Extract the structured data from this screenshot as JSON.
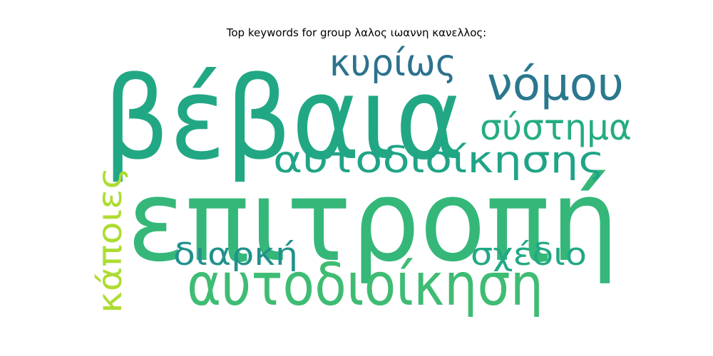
{
  "title": "Top keywords for group λαλος ιωαννη κανελλος:",
  "words": [
    {
      "text": "επιτροπή",
      "color": "#35b779"
    },
    {
      "text": "βέβαια",
      "color": "#22a784"
    },
    {
      "text": "αυτοδιοίκηση",
      "color": "#3fbc73"
    },
    {
      "text": "νόμου",
      "color": "#2a788e"
    },
    {
      "text": "αυτοδιοίκησης",
      "color": "#20a486"
    },
    {
      "text": "κυρίως",
      "color": "#2c728e"
    },
    {
      "text": "σύστημα",
      "color": "#25ac82"
    },
    {
      "text": "κάποιες",
      "color": "#addc30"
    },
    {
      "text": "σχέδιο",
      "color": "#22a884"
    },
    {
      "text": "διαρκή",
      "color": "#21918c"
    }
  ]
}
